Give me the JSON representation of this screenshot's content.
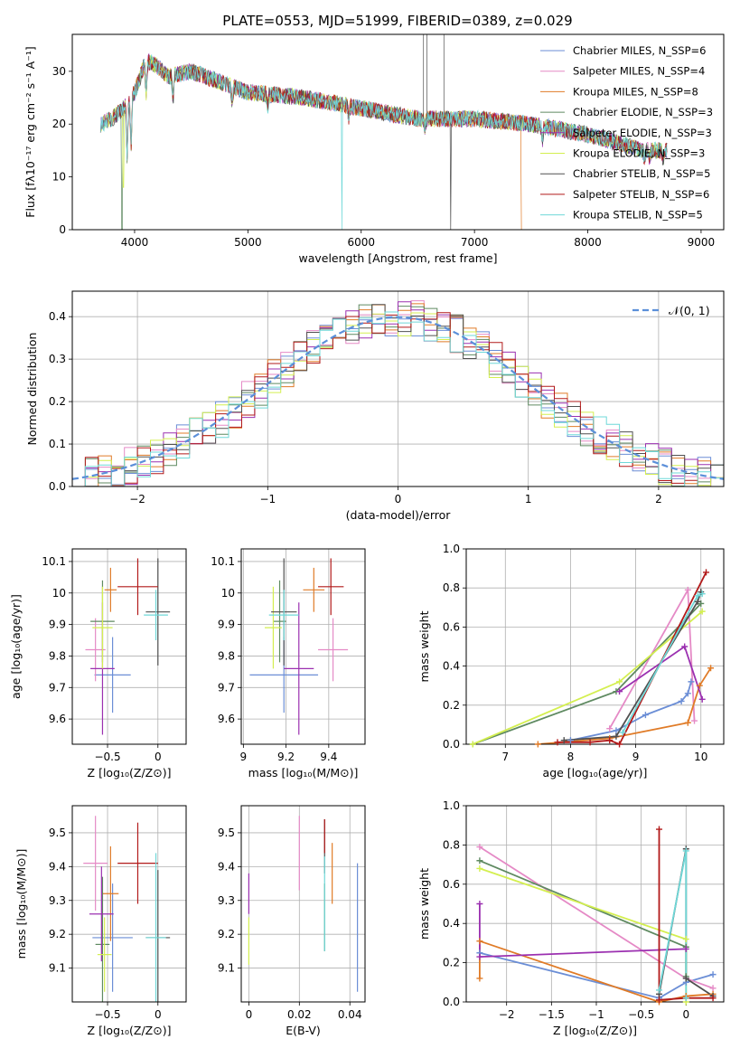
{
  "chart_data": [
    {
      "type": "line",
      "title": "PLATE=0553, MJD=51999, FIBERID=0389, z=0.029",
      "xlabel": "wavelength [Angstrom, rest frame]",
      "ylabel": "Flux [fλ10⁻¹⁷ erg cm⁻² s⁻¹ A⁻¹]",
      "xlim": [
        3450,
        9200
      ],
      "ylim": [
        0,
        37
      ],
      "xticks": [
        4000,
        5000,
        6000,
        7000,
        8000,
        9000
      ],
      "yticks": [
        0,
        10,
        20,
        30
      ],
      "legend_position": "top-right",
      "continuum": {
        "x": [
          3700,
          3800,
          3900,
          4000,
          4100,
          4200,
          4300,
          4500,
          5000,
          5500,
          6000,
          6500,
          7000,
          7500,
          8000,
          8500,
          8700
        ],
        "y": [
          20,
          21,
          23,
          26,
          32,
          31,
          29,
          30,
          26,
          25,
          23,
          21,
          21,
          20,
          18,
          15,
          15
        ]
      },
      "series": [
        {
          "name": "Chabrier MILES, N_SSP=6",
          "color": "#6b8ed6"
        },
        {
          "name": "Salpeter MILES, N_SSP=4",
          "color": "#e58ac6"
        },
        {
          "name": "Kroupa MILES, N_SSP=8",
          "color": "#e07b27"
        },
        {
          "name": "Chabrier ELODIE, N_SSP=3",
          "color": "#5f8a61"
        },
        {
          "name": "Salpeter ELODIE, N_SSP=3",
          "color": "#9b30b0"
        },
        {
          "name": "Kroupa ELODIE, N_SSP=3",
          "color": "#d4ef50"
        },
        {
          "name": "Chabrier STELIB, N_SSP=5",
          "color": "#505050"
        },
        {
          "name": "Salpeter STELIB, N_SSP=6",
          "color": "#b21a1a"
        },
        {
          "name": "Kroupa STELIB, N_SSP=5",
          "color": "#6fd8d8"
        }
      ]
    },
    {
      "type": "line",
      "xlabel": "(data-model)/error",
      "ylabel": "Normed distribution",
      "xlim": [
        -2.5,
        2.5
      ],
      "ylim": [
        0,
        0.46
      ],
      "xticks": [
        -2,
        -1,
        0,
        1,
        2
      ],
      "yticks": [
        0.0,
        0.1,
        0.2,
        0.3,
        0.4
      ],
      "grid": true,
      "legend_position": "top-right",
      "gaussian": {
        "name": "𝒩(0, 1)",
        "mu": 0,
        "sigma": 1,
        "color": "#5b8fd9"
      },
      "histogram_bin_width": 0.1
    },
    {
      "type": "scatter",
      "xlabel": "Z [log₁₀(Z/Z⊙)]",
      "ylabel": "age  [log₁₀(age/yr)]",
      "xlim": [
        -0.85,
        0.28
      ],
      "ylim": [
        9.52,
        10.14
      ],
      "xticks": [
        -0.5,
        0.0
      ],
      "yticks": [
        9.6,
        9.7,
        9.8,
        9.9,
        10.0,
        10.1
      ],
      "grid": true,
      "points": [
        {
          "x": -0.45,
          "xerr": 0.18,
          "y": 9.74,
          "yerr": 0.12,
          "color": "#6b8ed6"
        },
        {
          "x": -0.62,
          "xerr": 0.1,
          "y": 9.82,
          "yerr": 0.1,
          "color": "#e58ac6"
        },
        {
          "x": -0.47,
          "xerr": 0.06,
          "y": 10.01,
          "yerr": 0.07,
          "color": "#e07b27"
        },
        {
          "x": -0.55,
          "xerr": 0.12,
          "y": 9.91,
          "yerr": 0.13,
          "color": "#5f8a61"
        },
        {
          "x": -0.55,
          "xerr": 0.12,
          "y": 9.76,
          "yerr": 0.21,
          "color": "#9b30b0"
        },
        {
          "x": -0.55,
          "xerr": 0.1,
          "y": 9.89,
          "yerr": 0.13,
          "color": "#d4ef50"
        },
        {
          "x": 0.0,
          "xerr": 0.12,
          "y": 9.94,
          "yerr": 0.17,
          "color": "#505050"
        },
        {
          "x": -0.2,
          "xerr": 0.2,
          "y": 10.02,
          "yerr": 0.09,
          "color": "#b21a1a"
        },
        {
          "x": -0.02,
          "xerr": 0.12,
          "y": 9.93,
          "yerr": 0.08,
          "color": "#6fd8d8"
        }
      ]
    },
    {
      "type": "scatter",
      "xlabel": "mass [log₁₀(M/M⊙)]",
      "xlim": [
        8.99,
        9.57
      ],
      "ylim": [
        9.52,
        10.14
      ],
      "xticks": [
        9.0,
        9.2,
        9.4
      ],
      "yticks": [
        9.6,
        9.7,
        9.8,
        9.9,
        10.0,
        10.1
      ],
      "grid": true,
      "points": [
        {
          "x": 9.19,
          "xerr": 0.16,
          "y": 9.74,
          "yerr": 0.12,
          "color": "#6b8ed6"
        },
        {
          "x": 9.42,
          "xerr": 0.07,
          "y": 9.82,
          "yerr": 0.1,
          "color": "#e58ac6"
        },
        {
          "x": 9.33,
          "xerr": 0.05,
          "y": 10.01,
          "yerr": 0.07,
          "color": "#e07b27"
        },
        {
          "x": 9.17,
          "xerr": 0.03,
          "y": 9.91,
          "yerr": 0.13,
          "color": "#5f8a61"
        },
        {
          "x": 9.26,
          "xerr": 0.07,
          "y": 9.76,
          "yerr": 0.21,
          "color": "#9b30b0"
        },
        {
          "x": 9.14,
          "xerr": 0.04,
          "y": 9.89,
          "yerr": 0.13,
          "color": "#d4ef50"
        },
        {
          "x": 9.19,
          "xerr": 0.06,
          "y": 9.94,
          "yerr": 0.17,
          "color": "#505050"
        },
        {
          "x": 9.41,
          "xerr": 0.06,
          "y": 10.02,
          "yerr": 0.09,
          "color": "#b21a1a"
        },
        {
          "x": 9.19,
          "xerr": 0.07,
          "y": 9.93,
          "yerr": 0.08,
          "color": "#6fd8d8"
        }
      ]
    },
    {
      "type": "line",
      "xlabel": "age  [log₁₀(age/yr)]",
      "ylabel": "mass weight",
      "xlim": [
        6.4,
        10.35
      ],
      "ylim": [
        0,
        1
      ],
      "xticks": [
        7,
        8,
        9,
        10
      ],
      "yticks": [
        0.0,
        0.2,
        0.4,
        0.6,
        0.8,
        1.0
      ],
      "grid": true,
      "series": [
        {
          "color": "#6b8ed6",
          "x": [
            8.0,
            8.7,
            9.15,
            9.7,
            9.8,
            9.85
          ],
          "y": [
            0.02,
            0.07,
            0.15,
            0.22,
            0.26,
            0.32
          ]
        },
        {
          "color": "#e58ac6",
          "x": [
            8.6,
            9.8,
            9.9
          ],
          "y": [
            0.08,
            0.79,
            0.12
          ]
        },
        {
          "color": "#e07b27",
          "x": [
            7.5,
            8.6,
            9.8,
            9.98,
            10.15
          ],
          "y": [
            0.0,
            0.03,
            0.11,
            0.3,
            0.39
          ]
        },
        {
          "color": "#5f8a61",
          "x": [
            6.5,
            8.7,
            10.0
          ],
          "y": [
            0.0,
            0.27,
            0.72
          ]
        },
        {
          "color": "#9b30b0",
          "x": [
            8.75,
            9.75,
            10.02
          ],
          "y": [
            0.27,
            0.5,
            0.23
          ]
        },
        {
          "color": "#d4ef50",
          "x": [
            6.5,
            8.75,
            10.02
          ],
          "y": [
            0.0,
            0.32,
            0.68
          ]
        },
        {
          "color": "#505050",
          "x": [
            7.9,
            8.7,
            9.95,
            10.0
          ],
          "y": [
            0.02,
            0.04,
            0.73,
            0.78
          ]
        },
        {
          "color": "#b21a1a",
          "x": [
            7.8,
            8.3,
            8.6,
            8.75,
            10.08
          ],
          "y": [
            0.01,
            0.01,
            0.02,
            0.0,
            0.88
          ]
        },
        {
          "color": "#6fd8d8",
          "x": [
            8.8,
            9.95,
            10.02
          ],
          "y": [
            0.06,
            0.76,
            0.77
          ]
        }
      ]
    },
    {
      "type": "scatter",
      "xlabel": "Z [log₁₀(Z/Z⊙)]",
      "ylabel": "mass [log₁₀(M/M⊙)]",
      "xlim": [
        -0.85,
        0.28
      ],
      "ylim": [
        9.0,
        9.58
      ],
      "xticks": [
        -0.5,
        0.0
      ],
      "yticks": [
        9.1,
        9.2,
        9.3,
        9.4,
        9.5
      ],
      "grid": true,
      "points": [
        {
          "x": -0.45,
          "xerr": 0.2,
          "y": 9.19,
          "yerr": 0.16,
          "color": "#6b8ed6"
        },
        {
          "x": -0.62,
          "xerr": 0.12,
          "y": 9.41,
          "yerr": 0.14,
          "color": "#e58ac6"
        },
        {
          "x": -0.47,
          "xerr": 0.08,
          "y": 9.32,
          "yerr": 0.14,
          "color": "#e07b27"
        },
        {
          "x": -0.55,
          "xerr": 0.07,
          "y": 9.17,
          "yerr": 0.2,
          "color": "#5f8a61"
        },
        {
          "x": -0.56,
          "xerr": 0.12,
          "y": 9.26,
          "yerr": 0.14,
          "color": "#9b30b0"
        },
        {
          "x": -0.53,
          "xerr": 0.07,
          "y": 9.14,
          "yerr": 0.11,
          "color": "#d4ef50"
        },
        {
          "x": 0.0,
          "xerr": 0.12,
          "y": 9.19,
          "yerr": 0.2,
          "color": "#505050"
        },
        {
          "x": -0.2,
          "xerr": 0.2,
          "y": 9.41,
          "yerr": 0.12,
          "color": "#b21a1a"
        },
        {
          "x": -0.02,
          "xerr": 0.1,
          "y": 9.19,
          "yerr": 0.25,
          "color": "#6fd8d8"
        }
      ]
    },
    {
      "type": "scatter",
      "xlabel": "E(B-V)",
      "xlim": [
        -0.003,
        0.046
      ],
      "ylim": [
        9.0,
        9.58
      ],
      "xticks": [
        0.0,
        0.02,
        0.04
      ],
      "yticks": [
        9.1,
        9.2,
        9.3,
        9.4,
        9.5
      ],
      "grid": true,
      "points": [
        {
          "x": 0.043,
          "y": 9.22,
          "yerr": 0.19,
          "color": "#6b8ed6"
        },
        {
          "x": 0.02,
          "y": 9.44,
          "yerr": 0.11,
          "color": "#e58ac6"
        },
        {
          "x": 0.033,
          "y": 9.38,
          "yerr": 0.09,
          "color": "#e07b27"
        },
        {
          "x": 0.03,
          "y": 9.25,
          "yerr": 0.1,
          "color": "#5f8a61"
        },
        {
          "x": 0.0,
          "y": 9.32,
          "yerr": 0.06,
          "color": "#9b30b0"
        },
        {
          "x": 0.0,
          "y": 9.18,
          "yerr": 0.07,
          "color": "#d4ef50"
        },
        {
          "x": 0.03,
          "y": 9.46,
          "yerr": 0.08,
          "color": "#505050"
        },
        {
          "x": 0.03,
          "y": 9.49,
          "yerr": 0.05,
          "color": "#b21a1a"
        },
        {
          "x": 0.03,
          "y": 9.29,
          "yerr": 0.14,
          "color": "#6fd8d8"
        }
      ]
    },
    {
      "type": "line",
      "xlabel": "Z [log₁₀(Z/Z⊙)]",
      "ylabel": "mass weight",
      "xlim": [
        -2.45,
        0.42
      ],
      "ylim": [
        0,
        1
      ],
      "xticks": [
        -2.0,
        -1.5,
        -1.0,
        -0.5,
        0.0
      ],
      "yticks": [
        0.0,
        0.2,
        0.4,
        0.6,
        0.8,
        1.0
      ],
      "grid": true,
      "series": [
        {
          "color": "#6b8ed6",
          "x": [
            -2.3,
            -0.3,
            0.0,
            0.3
          ],
          "y": [
            0.25,
            0.02,
            0.1,
            0.14
          ]
        },
        {
          "color": "#e58ac6",
          "x": [
            -2.3,
            0.0,
            0.3
          ],
          "y": [
            0.79,
            0.12,
            0.07
          ]
        },
        {
          "color": "#e07b27",
          "x": [
            -2.3,
            -2.3,
            -0.3,
            0.0,
            0.3
          ],
          "y": [
            0.12,
            0.31,
            0.0,
            0.03,
            0.04
          ]
        },
        {
          "color": "#5f8a61",
          "x": [
            -2.3,
            0.0,
            0.0
          ],
          "y": [
            0.72,
            0.28,
            0.13
          ]
        },
        {
          "color": "#9b30b0",
          "x": [
            -2.3,
            -2.3,
            0.0
          ],
          "y": [
            0.5,
            0.23,
            0.27
          ]
        },
        {
          "color": "#d4ef50",
          "x": [
            -2.3,
            0.0,
            0.0
          ],
          "y": [
            0.68,
            0.32,
            0.0
          ]
        },
        {
          "color": "#505050",
          "x": [
            -0.3,
            0.0,
            0.0,
            0.3
          ],
          "y": [
            0.04,
            0.78,
            0.12,
            0.03
          ]
        },
        {
          "color": "#b21a1a",
          "x": [
            -0.3,
            -0.3,
            0.0,
            0.3
          ],
          "y": [
            0.88,
            0.01,
            0.02,
            0.02
          ]
        },
        {
          "color": "#6fd8d8",
          "x": [
            -0.3,
            0.0,
            0.0
          ],
          "y": [
            0.06,
            0.77,
            0.02
          ]
        }
      ]
    }
  ]
}
